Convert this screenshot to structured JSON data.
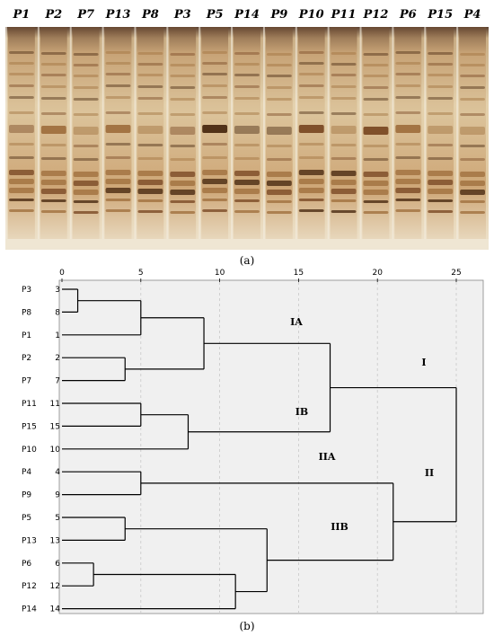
{
  "panel_a": {
    "lanes": [
      "P1",
      "P2",
      "P7",
      "P13",
      "P8",
      "P3",
      "P5",
      "P14",
      "P9",
      "P10",
      "P11",
      "P12",
      "P6",
      "P15",
      "P4"
    ],
    "caption": "(a)",
    "colors": {
      "gel_base": "#e9d9bd",
      "band_dark": "#5a3418",
      "band_mid": "#8a5530",
      "separator": "#f4ede0"
    }
  },
  "panel_b": {
    "caption": "(b)",
    "axis_ticks": [
      "0",
      "5",
      "10",
      "15",
      "20",
      "25"
    ],
    "leaves": [
      {
        "name": "P3",
        "index": "3"
      },
      {
        "name": "P8",
        "index": "8"
      },
      {
        "name": "P1",
        "index": "1"
      },
      {
        "name": "P2",
        "index": "2"
      },
      {
        "name": "P7",
        "index": "7"
      },
      {
        "name": "P11",
        "index": "11"
      },
      {
        "name": "P15",
        "index": "15"
      },
      {
        "name": "P10",
        "index": "10"
      },
      {
        "name": "P4",
        "index": "4"
      },
      {
        "name": "P9",
        "index": "9"
      },
      {
        "name": "P5",
        "index": "5"
      },
      {
        "name": "P13",
        "index": "13"
      },
      {
        "name": "P6",
        "index": "6"
      },
      {
        "name": "P12",
        "index": "12"
      },
      {
        "name": "P14",
        "index": "14"
      }
    ],
    "clusters": {
      "IA": "IA",
      "IB": "IB",
      "IIA": "IIA",
      "IIB": "IIB",
      "I": "I",
      "II": "II"
    },
    "colors": {
      "plot_bg": "#f0f0f0",
      "line": "#000000",
      "grid": "#c8c8c8"
    }
  }
}
